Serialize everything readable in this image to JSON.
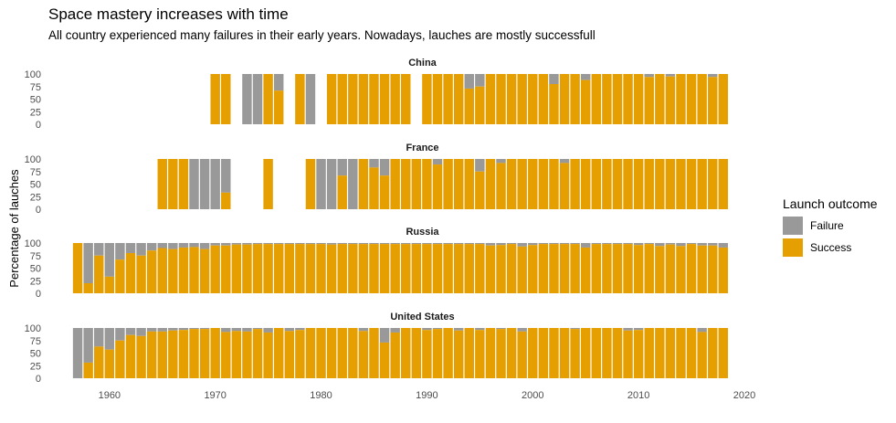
{
  "chart_data": {
    "type": "bar",
    "stacked": true,
    "title": "Space mastery increases with time",
    "subtitle": "All country experienced many failures in their early years. Nowadays, lauches are mostly successfull",
    "ylabel": "Percentage of lauches",
    "xlabel": "",
    "xlim": [
      1955.7,
      2020
    ],
    "xticks": [
      1960,
      1970,
      1980,
      1990,
      2000,
      2010,
      2020
    ],
    "ylim": [
      0,
      100
    ],
    "yticks": [
      0,
      25,
      50,
      75,
      100
    ],
    "grid": false,
    "legend": {
      "title": "Launch outcome",
      "position": "right",
      "entries": [
        {
          "name": "Failure",
          "color": "#999999"
        },
        {
          "name": "Success",
          "color": "#E69F00"
        }
      ]
    },
    "facets": [
      {
        "name": "China",
        "years": [
          1970,
          1971,
          1973,
          1974,
          1975,
          1976,
          1978,
          1979,
          1981,
          1982,
          1983,
          1984,
          1985,
          1986,
          1987,
          1988,
          1990,
          1991,
          1992,
          1993,
          1994,
          1995,
          1996,
          1997,
          1998,
          1999,
          2000,
          2001,
          2002,
          2003,
          2004,
          2005,
          2006,
          2007,
          2008,
          2009,
          2010,
          2011,
          2012,
          2013,
          2014,
          2015,
          2016,
          2017,
          2018
        ],
        "success": [
          100,
          100,
          0,
          0,
          100,
          67,
          100,
          0,
          100,
          100,
          100,
          100,
          100,
          100,
          100,
          100,
          100,
          100,
          100,
          100,
          71,
          75,
          100,
          100,
          100,
          100,
          100,
          100,
          80,
          100,
          100,
          88,
          100,
          100,
          100,
          100,
          100,
          94,
          100,
          95,
          100,
          100,
          100,
          94,
          100
        ]
      },
      {
        "name": "France",
        "years": [
          1965,
          1966,
          1967,
          1968,
          1969,
          1970,
          1971,
          1975,
          1979,
          1980,
          1981,
          1982,
          1983,
          1984,
          1985,
          1986,
          1987,
          1988,
          1989,
          1990,
          1991,
          1992,
          1993,
          1994,
          1995,
          1996,
          1997,
          1998,
          1999,
          2000,
          2001,
          2002,
          2003,
          2004,
          2005,
          2006,
          2007,
          2008,
          2009,
          2010,
          2011,
          2012,
          2013,
          2014,
          2015,
          2016,
          2017,
          2018
        ],
        "success": [
          100,
          100,
          100,
          0,
          0,
          0,
          33,
          100,
          100,
          0,
          0,
          67,
          0,
          100,
          83,
          67,
          100,
          100,
          100,
          100,
          89,
          100,
          100,
          100,
          75,
          100,
          92,
          100,
          100,
          100,
          100,
          100,
          92,
          100,
          100,
          100,
          100,
          100,
          100,
          100,
          100,
          100,
          100,
          100,
          100,
          100,
          100,
          100
        ]
      },
      {
        "name": "Russia",
        "years": [
          1957,
          1958,
          1959,
          1960,
          1961,
          1962,
          1963,
          1964,
          1965,
          1966,
          1967,
          1968,
          1969,
          1970,
          1971,
          1972,
          1973,
          1974,
          1975,
          1976,
          1977,
          1978,
          1979,
          1980,
          1981,
          1982,
          1983,
          1984,
          1985,
          1986,
          1987,
          1988,
          1989,
          1990,
          1991,
          1992,
          1993,
          1994,
          1995,
          1996,
          1997,
          1998,
          1999,
          2000,
          2001,
          2002,
          2003,
          2004,
          2005,
          2006,
          2007,
          2008,
          2009,
          2010,
          2011,
          2012,
          2013,
          2014,
          2015,
          2016,
          2017,
          2018
        ],
        "success": [
          100,
          20,
          75,
          33,
          67,
          80,
          75,
          85,
          90,
          88,
          91,
          92,
          88,
          95,
          95,
          97,
          97,
          98,
          98,
          98,
          98,
          98,
          98,
          98,
          97,
          98,
          98,
          98,
          98,
          98,
          98,
          98,
          98,
          98,
          98,
          98,
          98,
          98,
          98,
          95,
          96,
          98,
          93,
          96,
          98,
          98,
          98,
          98,
          91,
          98,
          98,
          98,
          98,
          96,
          98,
          94,
          97,
          94,
          98,
          95,
          95,
          91
        ]
      },
      {
        "name": "United States",
        "years": [
          1957,
          1958,
          1959,
          1960,
          1961,
          1962,
          1963,
          1964,
          1965,
          1966,
          1967,
          1968,
          1969,
          1970,
          1971,
          1972,
          1973,
          1974,
          1975,
          1976,
          1977,
          1978,
          1979,
          1980,
          1981,
          1982,
          1983,
          1984,
          1985,
          1986,
          1987,
          1988,
          1989,
          1990,
          1991,
          1992,
          1993,
          1994,
          1995,
          1996,
          1997,
          1998,
          1999,
          2000,
          2001,
          2002,
          2003,
          2004,
          2005,
          2006,
          2007,
          2008,
          2009,
          2010,
          2011,
          2012,
          2013,
          2014,
          2015,
          2016,
          2017,
          2018
        ],
        "success": [
          0,
          31,
          63,
          57,
          75,
          86,
          84,
          93,
          93,
          95,
          96,
          98,
          98,
          100,
          92,
          94,
          93,
          98,
          91,
          100,
          94,
          96,
          100,
          100,
          100,
          100,
          100,
          94,
          100,
          71,
          91,
          100,
          100,
          96,
          98,
          100,
          95,
          100,
          96,
          100,
          98,
          100,
          93,
          100,
          100,
          100,
          100,
          98,
          100,
          100,
          100,
          100,
          95,
          96,
          100,
          100,
          100,
          100,
          100,
          92,
          100,
          100
        ]
      }
    ]
  }
}
